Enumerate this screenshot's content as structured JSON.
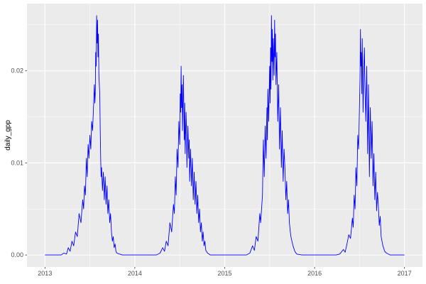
{
  "theme": {
    "panel_bg": "#EBEBEB",
    "grid_major_color": "#FFFFFF",
    "grid_minor_color": "#FFFFFF",
    "line_color": "#0000FF",
    "tick_color": "#333333",
    "tick_label_color": "#4D4D4D",
    "axis_title_color": "#000000",
    "figure_bg": "#FFFFFF"
  },
  "chart_data": {
    "type": "line",
    "title": "",
    "xlabel": "",
    "ylabel": "daily_gpp",
    "grid": true,
    "legend": "none",
    "xlim": [
      2013,
      2017
    ],
    "ylim": [
      0,
      0.026
    ],
    "x_ticks": [
      2013,
      2014,
      2015,
      2016,
      2017
    ],
    "x_tick_labels": [
      "2013",
      "2014",
      "2015",
      "2016",
      "2017"
    ],
    "x_minor": [
      2013.5,
      2014.5,
      2015.5,
      2016.5
    ],
    "y_ticks": [
      0,
      0.01,
      0.02
    ],
    "y_tick_labels": [
      "0.00",
      "0.01",
      "0.02"
    ],
    "y_minor": [
      0.005,
      0.015,
      0.025
    ],
    "series": [
      {
        "name": "daily_gpp",
        "color": "#0000FF",
        "points": [
          [
            2013.0,
            0
          ],
          [
            2013.06,
            0
          ],
          [
            2013.12,
            0
          ],
          [
            2013.18,
            0
          ],
          [
            2013.21,
            0.0002
          ],
          [
            2013.24,
            0.0001
          ],
          [
            2013.26,
            0.0008
          ],
          [
            2013.28,
            0.0004
          ],
          [
            2013.3,
            0.0015
          ],
          [
            2013.32,
            0.001
          ],
          [
            2013.34,
            0.0025
          ],
          [
            2013.36,
            0.002
          ],
          [
            2013.38,
            0.0045
          ],
          [
            2013.4,
            0.0035
          ],
          [
            2013.42,
            0.006
          ],
          [
            2013.43,
            0.005
          ],
          [
            2013.44,
            0.0075
          ],
          [
            2013.45,
            0.0065
          ],
          [
            2013.46,
            0.0105
          ],
          [
            2013.47,
            0.0085
          ],
          [
            2013.48,
            0.012
          ],
          [
            2013.49,
            0.0105
          ],
          [
            2013.5,
            0.013
          ],
          [
            2013.51,
            0.0115
          ],
          [
            2013.52,
            0.0145
          ],
          [
            2013.53,
            0.0135
          ],
          [
            2013.54,
            0.016
          ],
          [
            2013.55,
            0.0185
          ],
          [
            2013.555,
            0.0165
          ],
          [
            2013.56,
            0.0175
          ],
          [
            2013.565,
            0.022
          ],
          [
            2013.57,
            0.0205
          ],
          [
            2013.575,
            0.026
          ],
          [
            2013.58,
            0.023
          ],
          [
            2013.585,
            0.0255
          ],
          [
            2013.59,
            0.0215
          ],
          [
            2013.595,
            0.024
          ],
          [
            2013.6,
            0.0195
          ],
          [
            2013.61,
            0.0175
          ],
          [
            2013.615,
            0.0135
          ],
          [
            2013.62,
            0.0105
          ],
          [
            2013.625,
            0.0085
          ],
          [
            2013.63,
            0.0095
          ],
          [
            2013.64,
            0.007
          ],
          [
            2013.65,
            0.009
          ],
          [
            2013.66,
            0.006
          ],
          [
            2013.67,
            0.0085
          ],
          [
            2013.68,
            0.0055
          ],
          [
            2013.69,
            0.0075
          ],
          [
            2013.7,
            0.0045
          ],
          [
            2013.71,
            0.006
          ],
          [
            2013.72,
            0.0035
          ],
          [
            2013.73,
            0.0045
          ],
          [
            2013.74,
            0.0025
          ],
          [
            2013.75,
            0.0015
          ],
          [
            2013.76,
            0.002
          ],
          [
            2013.77,
            0.0008
          ],
          [
            2013.78,
            0.0012
          ],
          [
            2013.79,
            0.0004
          ],
          [
            2013.8,
            0.0002
          ],
          [
            2013.83,
            0.0001
          ],
          [
            2013.86,
            0
          ],
          [
            2013.92,
            0
          ],
          [
            2014.0,
            0
          ],
          [
            2014.08,
            0
          ],
          [
            2014.16,
            0
          ],
          [
            2014.24,
            0
          ],
          [
            2014.28,
            0.0002
          ],
          [
            2014.31,
            0.0008
          ],
          [
            2014.33,
            0.0004
          ],
          [
            2014.35,
            0.0015
          ],
          [
            2014.37,
            0.001
          ],
          [
            2014.39,
            0.0035
          ],
          [
            2014.41,
            0.0025
          ],
          [
            2014.43,
            0.0055
          ],
          [
            2014.44,
            0.0045
          ],
          [
            2014.45,
            0.0085
          ],
          [
            2014.46,
            0.0065
          ],
          [
            2014.47,
            0.0115
          ],
          [
            2014.48,
            0.0095
          ],
          [
            2014.49,
            0.0145
          ],
          [
            2014.5,
            0.012
          ],
          [
            2014.505,
            0.0175
          ],
          [
            2014.51,
            0.0155
          ],
          [
            2014.515,
            0.0205
          ],
          [
            2014.52,
            0.016
          ],
          [
            2014.525,
            0.0185
          ],
          [
            2014.53,
            0.0135
          ],
          [
            2014.54,
            0.0195
          ],
          [
            2014.55,
            0.0125
          ],
          [
            2014.555,
            0.0165
          ],
          [
            2014.56,
            0.011
          ],
          [
            2014.57,
            0.0155
          ],
          [
            2014.575,
            0.0135
          ],
          [
            2014.58,
            0.0095
          ],
          [
            2014.59,
            0.014
          ],
          [
            2014.6,
            0.0105
          ],
          [
            2014.605,
            0.0125
          ],
          [
            2014.61,
            0.008
          ],
          [
            2014.62,
            0.0115
          ],
          [
            2014.63,
            0.0075
          ],
          [
            2014.64,
            0.0105
          ],
          [
            2014.65,
            0.006
          ],
          [
            2014.66,
            0.009
          ],
          [
            2014.67,
            0.0055
          ],
          [
            2014.68,
            0.008
          ],
          [
            2014.69,
            0.0045
          ],
          [
            2014.7,
            0.0065
          ],
          [
            2014.71,
            0.0035
          ],
          [
            2014.72,
            0.005
          ],
          [
            2014.73,
            0.0025
          ],
          [
            2014.74,
            0.0035
          ],
          [
            2014.75,
            0.0015
          ],
          [
            2014.76,
            0.0025
          ],
          [
            2014.77,
            0.001
          ],
          [
            2014.78,
            0.0015
          ],
          [
            2014.79,
            0.0005
          ],
          [
            2014.81,
            0.0002
          ],
          [
            2014.84,
            0
          ],
          [
            2014.92,
            0
          ],
          [
            2015.0,
            0
          ],
          [
            2015.08,
            0
          ],
          [
            2015.16,
            0
          ],
          [
            2015.24,
            0
          ],
          [
            2015.28,
            0.0002
          ],
          [
            2015.31,
            0.001
          ],
          [
            2015.33,
            0.0005
          ],
          [
            2015.35,
            0.002
          ],
          [
            2015.37,
            0.0015
          ],
          [
            2015.39,
            0.0045
          ],
          [
            2015.4,
            0.0035
          ],
          [
            2015.42,
            0.0065
          ],
          [
            2015.43,
            0.0125
          ],
          [
            2015.44,
            0.0085
          ],
          [
            2015.45,
            0.014
          ],
          [
            2015.46,
            0.0105
          ],
          [
            2015.47,
            0.016
          ],
          [
            2015.475,
            0.0125
          ],
          [
            2015.48,
            0.018
          ],
          [
            2015.49,
            0.0145
          ],
          [
            2015.5,
            0.0205
          ],
          [
            2015.505,
            0.0165
          ],
          [
            2015.51,
            0.0225
          ],
          [
            2015.515,
            0.018
          ],
          [
            2015.52,
            0.026
          ],
          [
            2015.525,
            0.021
          ],
          [
            2015.53,
            0.0245
          ],
          [
            2015.535,
            0.019
          ],
          [
            2015.54,
            0.0235
          ],
          [
            2015.55,
            0.0195
          ],
          [
            2015.555,
            0.0255
          ],
          [
            2015.56,
            0.0215
          ],
          [
            2015.565,
            0.024
          ],
          [
            2015.57,
            0.0185
          ],
          [
            2015.58,
            0.022
          ],
          [
            2015.59,
            0.0145
          ],
          [
            2015.6,
            0.0185
          ],
          [
            2015.61,
            0.0115
          ],
          [
            2015.62,
            0.016
          ],
          [
            2015.63,
            0.0095
          ],
          [
            2015.64,
            0.0135
          ],
          [
            2015.65,
            0.008
          ],
          [
            2015.66,
            0.0115
          ],
          [
            2015.67,
            0.0095
          ],
          [
            2015.68,
            0.006
          ],
          [
            2015.69,
            0.008
          ],
          [
            2015.7,
            0.0045
          ],
          [
            2015.71,
            0.006
          ],
          [
            2015.72,
            0.0035
          ],
          [
            2015.73,
            0.0025
          ],
          [
            2015.74,
            0.0018
          ],
          [
            2015.76,
            0.001
          ],
          [
            2015.78,
            0.0004
          ],
          [
            2015.8,
            0.0001
          ],
          [
            2015.86,
            0
          ],
          [
            2015.92,
            0
          ],
          [
            2016.0,
            0
          ],
          [
            2016.08,
            0
          ],
          [
            2016.16,
            0
          ],
          [
            2016.24,
            0
          ],
          [
            2016.28,
            0.0001
          ],
          [
            2016.32,
            0.0006
          ],
          [
            2016.34,
            0.0003
          ],
          [
            2016.36,
            0.0012
          ],
          [
            2016.38,
            0.0022
          ],
          [
            2016.4,
            0.0018
          ],
          [
            2016.42,
            0.004
          ],
          [
            2016.43,
            0.003
          ],
          [
            2016.44,
            0.0065
          ],
          [
            2016.45,
            0.005
          ],
          [
            2016.46,
            0.0095
          ],
          [
            2016.47,
            0.0075
          ],
          [
            2016.48,
            0.013
          ],
          [
            2016.49,
            0.0115
          ],
          [
            2016.5,
            0.0165
          ],
          [
            2016.505,
            0.019
          ],
          [
            2016.51,
            0.0245
          ],
          [
            2016.515,
            0.0205
          ],
          [
            2016.52,
            0.022
          ],
          [
            2016.525,
            0.0175
          ],
          [
            2016.53,
            0.0235
          ],
          [
            2016.54,
            0.0155
          ],
          [
            2016.55,
            0.021
          ],
          [
            2016.555,
            0.0225
          ],
          [
            2016.56,
            0.0185
          ],
          [
            2016.57,
            0.0145
          ],
          [
            2016.58,
            0.0205
          ],
          [
            2016.59,
            0.011
          ],
          [
            2016.6,
            0.0185
          ],
          [
            2016.61,
            0.0085
          ],
          [
            2016.615,
            0.0125
          ],
          [
            2016.62,
            0.016
          ],
          [
            2016.63,
            0.0105
          ],
          [
            2016.64,
            0.0145
          ],
          [
            2016.65,
            0.0075
          ],
          [
            2016.66,
            0.011
          ],
          [
            2016.67,
            0.006
          ],
          [
            2016.68,
            0.009
          ],
          [
            2016.69,
            0.0048
          ],
          [
            2016.7,
            0.0068
          ],
          [
            2016.71,
            0.0052
          ],
          [
            2016.72,
            0.0032
          ],
          [
            2016.73,
            0.0042
          ],
          [
            2016.74,
            0.002
          ],
          [
            2016.76,
            0.001
          ],
          [
            2016.78,
            0.0004
          ],
          [
            2016.8,
            0.0002
          ],
          [
            2016.84,
            0
          ],
          [
            2016.92,
            0
          ],
          [
            2017.0,
            0
          ]
        ]
      }
    ]
  }
}
